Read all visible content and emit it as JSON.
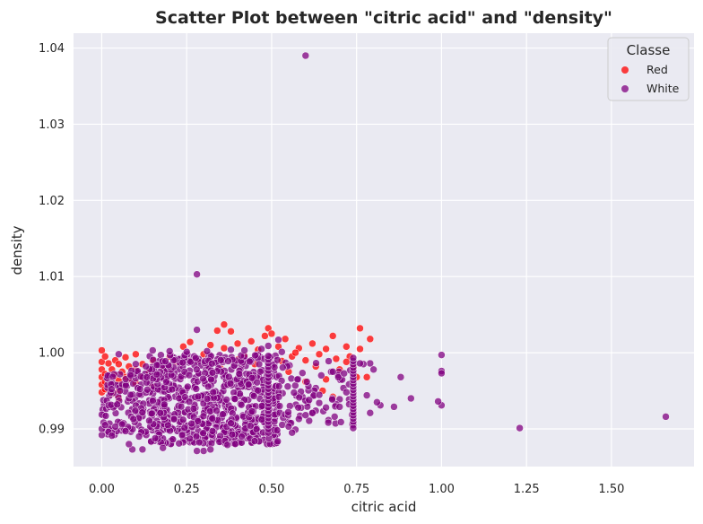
{
  "chart_data": {
    "type": "scatter",
    "title": "Scatter Plot between \"citric acid\" and \"density\"",
    "xlabel": "citric acid",
    "ylabel": "density",
    "xlim": [
      -0.083,
      1.743
    ],
    "ylim": [
      0.98505,
      1.04195
    ],
    "xticks": [
      0.0,
      0.25,
      0.5,
      0.75,
      1.0,
      1.25,
      1.5
    ],
    "xtick_labels": [
      "0.00",
      "0.25",
      "0.50",
      "0.75",
      "1.00",
      "1.25",
      "1.50"
    ],
    "yticks": [
      0.99,
      1.0,
      1.01,
      1.02,
      1.03,
      1.04
    ],
    "ytick_labels": [
      "0.99",
      "1.00",
      "1.01",
      "1.02",
      "1.03",
      "1.04"
    ],
    "grid": true,
    "background": "#eaeaf2",
    "legend": {
      "title": "Classe",
      "placement": "top-right",
      "entries": [
        {
          "label": "Red",
          "color": "#ff0000"
        },
        {
          "label": "White",
          "color": "#800080"
        }
      ]
    },
    "series": [
      {
        "name": "Red",
        "color": "#ff0000",
        "points": [
          [
            0.0,
            1.0003
          ],
          [
            0.0,
            0.9988
          ],
          [
            0.0,
            0.9978
          ],
          [
            0.0,
            0.9968
          ],
          [
            0.0,
            0.9958
          ],
          [
            0.0,
            0.9948
          ],
          [
            0.01,
            0.9995
          ],
          [
            0.01,
            0.9972
          ],
          [
            0.01,
            0.9962
          ],
          [
            0.01,
            0.9952
          ],
          [
            0.02,
            0.9986
          ],
          [
            0.02,
            0.9966
          ],
          [
            0.02,
            0.9956
          ],
          [
            0.03,
            0.9978
          ],
          [
            0.03,
            0.9958
          ],
          [
            0.03,
            0.9946
          ],
          [
            0.04,
            0.999
          ],
          [
            0.04,
            0.997
          ],
          [
            0.05,
            0.9985
          ],
          [
            0.05,
            0.9963
          ],
          [
            0.05,
            0.995
          ],
          [
            0.06,
            0.9975
          ],
          [
            0.06,
            0.9957
          ],
          [
            0.07,
            0.9994
          ],
          [
            0.07,
            0.9968
          ],
          [
            0.08,
            0.9982
          ],
          [
            0.08,
            0.9965
          ],
          [
            0.09,
            0.9972
          ],
          [
            0.1,
            0.9998
          ],
          [
            0.1,
            0.9978
          ],
          [
            0.1,
            0.996
          ],
          [
            0.12,
            0.9985
          ],
          [
            0.12,
            0.9968
          ],
          [
            0.14,
            0.9975
          ],
          [
            0.15,
            0.999
          ],
          [
            0.16,
            0.9968
          ],
          [
            0.18,
            0.9981
          ],
          [
            0.2,
            0.9995
          ],
          [
            0.2,
            0.9976
          ],
          [
            0.22,
            0.9988
          ],
          [
            0.24,
            1.0008
          ],
          [
            0.25,
            0.9992
          ],
          [
            0.26,
            1.0014
          ],
          [
            0.28,
            0.999
          ],
          [
            0.3,
            0.9998
          ],
          [
            0.32,
            1.001
          ],
          [
            0.34,
            1.0029
          ],
          [
            0.36,
            1.0037
          ],
          [
            0.36,
            1.0006
          ],
          [
            0.38,
            1.0028
          ],
          [
            0.4,
            1.0012
          ],
          [
            0.42,
            0.9996
          ],
          [
            0.44,
            1.0015
          ],
          [
            0.46,
            1.0004
          ],
          [
            0.48,
            1.0022
          ],
          [
            0.49,
            1.0032
          ],
          [
            0.5,
            1.0025
          ],
          [
            0.52,
            1.0008
          ],
          [
            0.54,
            1.0018
          ],
          [
            0.56,
            0.9995
          ],
          [
            0.58,
            1.0006
          ],
          [
            0.6,
            0.999
          ],
          [
            0.62,
            1.0012
          ],
          [
            0.63,
            0.9982
          ],
          [
            0.64,
            0.9998
          ],
          [
            0.66,
            1.0005
          ],
          [
            0.66,
            0.9965
          ],
          [
            0.68,
            1.0022
          ],
          [
            0.69,
            0.9992
          ],
          [
            0.7,
            0.9978
          ],
          [
            0.72,
            1.0008
          ],
          [
            0.73,
            0.9995
          ],
          [
            0.74,
            0.998
          ],
          [
            0.75,
            0.9968
          ],
          [
            0.76,
            1.0032
          ],
          [
            0.76,
            1.0005
          ],
          [
            0.78,
            0.9968
          ],
          [
            0.79,
            1.0018
          ],
          [
            0.72,
            0.9988
          ],
          [
            0.55,
            0.9975
          ],
          [
            0.45,
            0.9985
          ],
          [
            0.35,
            0.9979
          ],
          [
            0.4,
            0.9991
          ],
          [
            0.6,
            0.9962
          ],
          [
            0.65,
            0.995
          ],
          [
            0.68,
            0.9942
          ],
          [
            0.53,
            0.9989
          ],
          [
            0.57,
            1.0
          ],
          [
            0.15,
            0.9955
          ],
          [
            0.05,
            0.994
          ]
        ]
      },
      {
        "name": "White",
        "color": "#800080",
        "points": [
          [
            0.6,
            1.039
          ],
          [
            0.28,
            1.0103
          ],
          [
            0.28,
            1.003
          ],
          [
            1.66,
            0.9916
          ],
          [
            1.23,
            0.9901
          ],
          [
            1.0,
            0.9997
          ],
          [
            1.0,
            0.9976
          ],
          [
            1.0,
            0.9973
          ],
          [
            1.0,
            0.9931
          ],
          [
            0.99,
            0.9936
          ],
          [
            0.91,
            0.994
          ],
          [
            0.88,
            0.9968
          ],
          [
            0.86,
            0.9929
          ],
          [
            0.82,
            0.9931
          ],
          [
            0.81,
            0.9935
          ],
          [
            0.79,
            0.9986
          ],
          [
            0.8,
            0.9978
          ],
          [
            0.78,
            0.9944
          ],
          [
            0.79,
            0.9921
          ],
          [
            0.77,
            0.9985
          ],
          [
            0.76,
            0.9986
          ],
          [
            0.74,
            0.9901
          ],
          [
            0.72,
            0.9948
          ],
          [
            0.7,
            0.9929
          ],
          [
            0.68,
            0.9975
          ],
          [
            0.66,
            0.9928
          ],
          [
            0.64,
            0.9934
          ],
          [
            0.62,
            0.9921
          ],
          [
            0.6,
            0.9918
          ],
          [
            0.58,
            0.9913
          ],
          [
            0.57,
            0.9899
          ],
          [
            0.56,
            0.9895
          ],
          [
            0.55,
            0.9903
          ],
          [
            0.53,
            1.0001
          ],
          [
            0.52,
            1.0017
          ],
          [
            0.09,
            0.9873
          ],
          [
            0.12,
            0.9873
          ],
          [
            0.08,
            0.988
          ],
          [
            0.11,
            0.989
          ],
          [
            0.18,
            0.9875
          ],
          [
            0.28,
            0.9871
          ],
          [
            0.3,
            0.9871
          ],
          [
            0.32,
            0.9873
          ],
          [
            0.37,
            0.9879
          ],
          [
            0.45,
            0.9884
          ],
          [
            0.0,
            0.9892
          ],
          [
            0.0,
            0.99
          ],
          [
            0.01,
            0.9905
          ],
          [
            0.02,
            0.9896
          ],
          [
            0.03,
            0.9891
          ],
          [
            0.04,
            0.9903
          ],
          [
            0.06,
            0.9906
          ],
          [
            0.07,
            0.9897
          ],
          [
            0.05,
            0.9998
          ],
          [
            0.1,
            0.9985
          ],
          [
            0.13,
            0.9982
          ],
          [
            0.15,
            1.0003
          ],
          [
            0.2,
            1.0002
          ],
          [
            0.25,
            1.0001
          ],
          [
            0.31,
            1.0002
          ],
          [
            0.38,
            1.0004
          ],
          [
            0.42,
            1.0003
          ],
          [
            0.47,
            1.0005
          ],
          [
            0.49,
            1.0009
          ]
        ]
      }
    ],
    "dense_region": {
      "series": "White",
      "x_range": [
        0.14,
        0.52
      ],
      "y_range": [
        0.988,
        0.9998
      ]
    }
  }
}
